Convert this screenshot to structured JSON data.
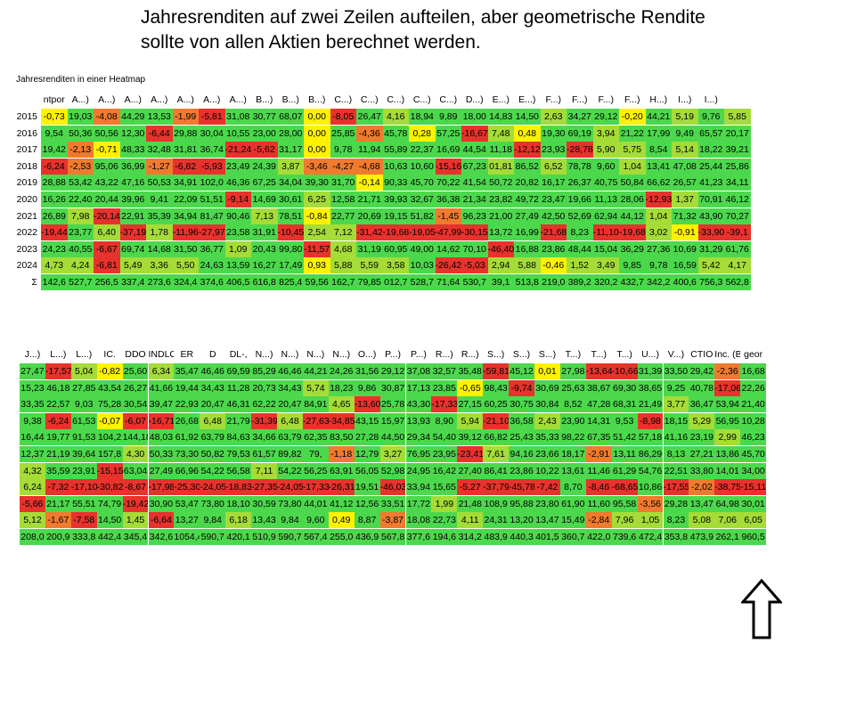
{
  "annotation": {
    "line1": "Jahresrenditen auf zwei Zeilen aufteilen, aber geometrische Rendite",
    "line2": "sollte von allen Aktien berechnet werden."
  },
  "heatmap_title": "Jahresrenditen in einer Heatmap",
  "colors": {
    "red": "#e8322c",
    "orange": "#f07a2e",
    "yellow": "#fff200",
    "yellowgreen": "#a5dc37",
    "green": "#4cd84c"
  },
  "top": {
    "headers": [
      "ntpor",
      "A...)",
      "A...)",
      "A...)",
      "A...)",
      "A...)",
      "A...)",
      "A...)",
      "B...)",
      "B...)",
      "B...)",
      "C...)",
      "C...)",
      "C...)",
      "C...)",
      "C...)",
      "D...)",
      "E...)",
      "E...)",
      "F...)",
      "F...)",
      "F...)",
      "F...)",
      "H...)",
      "I...)",
      "I...)"
    ],
    "years": [
      "2015",
      "2016",
      "2017",
      "2018",
      "2019",
      "2020",
      "2021",
      "2022",
      "2023",
      "2024",
      "Σ"
    ],
    "rows": [
      [
        "-0,73",
        "19,03",
        "-4,08",
        "44,29",
        "13,53",
        "-1,99",
        "-5,81",
        "31,08",
        "30,77",
        "68,07",
        "0,00",
        "-8,05",
        "26,47",
        "4,16",
        "18,94",
        "9,89",
        "18,00",
        "14,83",
        "14,50",
        "2,63",
        "34,27",
        "29,12",
        "-0,20",
        "44,21",
        "5,19",
        "9,76",
        "5,85"
      ],
      [
        "9,54",
        "50,36",
        "50,56",
        "12,30",
        "-6,44",
        "29,88",
        "30,04",
        "10,55",
        "23,00",
        "28,00",
        "0,00",
        "25,85",
        "-4,36",
        "45,78",
        "0,28",
        "57,25",
        "-16,67",
        "7,48",
        "0,48",
        "19,30",
        "69,19",
        "3,94",
        "21,22",
        "17,99",
        "9,49",
        "65,57",
        "20,17"
      ],
      [
        "19,42",
        "-2,13",
        "-0,71",
        "48,33",
        "32,48",
        "31,81",
        "36,74",
        "-21,24",
        "-5,62",
        "31,17",
        "0,00",
        "9,78",
        "11,94",
        "55,89",
        "22,37",
        "16,69",
        "44,54",
        "11,18",
        "-12,12",
        "23,93",
        "-28,78",
        "5,90",
        "5,75",
        "8,54",
        "5,14",
        "18,22",
        "39,21"
      ],
      [
        "-6,24",
        "-2,53",
        "95,06",
        "36,99",
        "-1,27",
        "-6,82",
        "-5,93",
        "23,49",
        "24,39",
        "3,87",
        "-3,46",
        "-4,27",
        "-4,68",
        "10,63",
        "10,60",
        "-15,16",
        "67,23",
        "01,81",
        "86,52",
        "6,52",
        "78,78",
        "9,60",
        "1,04",
        "13,41",
        "47,08",
        "25,44",
        "25,86"
      ],
      [
        "28,88",
        "53,42",
        "43,22",
        "47,16",
        "50,53",
        "34,91",
        "102,0",
        "46,36",
        "67,25",
        "34,04",
        "39,30",
        "31,70",
        "-0,14",
        "90,33",
        "45,70",
        "70,22",
        "41,54",
        "50,72",
        "20,82",
        "16,17",
        "26,37",
        "40,75",
        "50,84",
        "66,62",
        "26,57",
        "41,23",
        "34,11"
      ],
      [
        "16,26",
        "22,40",
        "20,44",
        "39,96",
        "9,41",
        "22,09",
        "51,51",
        "-9,14",
        "14,69",
        "30,61",
        "6,25",
        "12,58",
        "21,71",
        "39,93",
        "32,67",
        "36,38",
        "21,34",
        "23,82",
        "49,72",
        "23,47",
        "19,66",
        "11,13",
        "28,06",
        "-12,93",
        "1,37",
        "70,91",
        "46,12"
      ],
      [
        "26,89",
        "7,98",
        "-20,14",
        "22,91",
        "35,39",
        "34,94",
        "81,47",
        "90,46",
        "7,13",
        "78,51",
        "-0,84",
        "22,77",
        "20,69",
        "19,15",
        "51,82",
        "-1,45",
        "96,23",
        "21,00",
        "27,49",
        "42,50",
        "52,69",
        "62,94",
        "44,12",
        "1,04",
        "71,32",
        "43,90",
        "70,27"
      ],
      [
        "-19,44",
        "23,77",
        "6,40",
        "-37,19",
        "1,78",
        "-11,96",
        "-27,97",
        "23,58",
        "31,91",
        "-10,45",
        "2,54",
        "7,12",
        "-31,42",
        "-19,68",
        "-19,05",
        "-47,99",
        "-30,15",
        "13,72",
        "16,99",
        "-21,68",
        "8,23",
        "-11,10",
        "-19,68",
        "3,02",
        "-0,91",
        "-33,90",
        "-39,1"
      ],
      [
        "24,23",
        "40,55",
        "-6,67",
        "69,74",
        "14,68",
        "31,50",
        "36,77",
        "1,09",
        "20,43",
        "99,80",
        "-11,57",
        "4,68",
        "31,19",
        "60,95",
        "49,00",
        "14,62",
        "70,10",
        "-46,40",
        "16,88",
        "23,86",
        "48,44",
        "15,04",
        "36,29",
        "27,36",
        "10,69",
        "31,29",
        "61,76"
      ],
      [
        "4,73",
        "4,24",
        "-6,81",
        "5,49",
        "3,36",
        "5,50",
        "24,63",
        "13,59",
        "16,27",
        "17,49",
        "0,93",
        "5,88",
        "5,59",
        "3,58",
        "10,03",
        "-26,42",
        "-5,03",
        "2,94",
        "5,88",
        "-0,46",
        "1,52",
        "3,49",
        "9,85",
        "9,78",
        "16,59",
        "5,42",
        "4,17"
      ],
      [
        "142,6",
        "527,7",
        "256,5",
        "337,4",
        "273,6",
        "324,4",
        "374,6",
        "406,5",
        "616,8",
        "825,4",
        "59,56",
        "162,7",
        "79,85",
        "012,7",
        "528,7",
        "71,64",
        "530,7",
        "39,1",
        "513,8",
        "219,0",
        "389,2",
        "320,2",
        "432,7",
        "342,2",
        "400,6",
        "756,3",
        "562,8"
      ]
    ]
  },
  "bottom": {
    "headers": [
      "J...)",
      "L...)",
      "L...)",
      "IC.",
      "DDO",
      "INDLOG,0000",
      "ER",
      "D",
      "DL-,",
      "N...)",
      "N...)",
      "N...)",
      "N...)",
      "O...)",
      "P...)",
      "P...)",
      "R...)",
      "R...)",
      "S...)",
      "S...)",
      "S...)",
      "T...)",
      "T...)",
      "T...)",
      "U...)",
      "V...)",
      "CTIO",
      "Inc. (B",
      "geor"
    ],
    "rows": [
      [
        "27,47",
        "-17,57",
        "5,04",
        "-0,82",
        "25,60",
        "6,34",
        "35,47",
        "46,46",
        "69,59",
        "85,29",
        "46,46",
        "44,21",
        "24,26",
        "31,56",
        "29,12",
        "37,08",
        "32,57",
        "35,48",
        "-59,81",
        "45,12",
        "0,01",
        "27,98",
        "-13,64",
        "-10,66",
        "31,39",
        "33,50",
        "29,42",
        "-2,36",
        "16,68"
      ],
      [
        "15,23",
        "46,18",
        "27,85",
        "43,54",
        "26,27",
        "41,66",
        "19,44",
        "34,43",
        "11,28",
        "20,73",
        "34,43",
        "5,74",
        "18,23",
        "9,86",
        "30,87",
        "17,13",
        "23,85",
        "-0,65",
        "98,43",
        "-9,74",
        "30,69",
        "25,63",
        "38,67",
        "69,30",
        "38,65",
        "9,25",
        "40,78",
        "-17,06",
        "22,26"
      ],
      [
        "33,35",
        "22,57",
        "9,03",
        "75,28",
        "30,54",
        "39,47",
        "22,93",
        "20,47",
        "46,31",
        "62,22",
        "20,47",
        "84,91",
        "4,65",
        "-13,60",
        "25,78",
        "43,30",
        "-17,33",
        "27,15",
        "60,25",
        "30,75",
        "30,84",
        "8,52",
        "47,28",
        "68,31",
        "21,49",
        "3,77",
        "36,47",
        "53,94",
        "21,40"
      ],
      [
        "9,38",
        "-6,24",
        "61,53",
        "-0,07",
        "-6,07",
        "-16,71",
        "26,68",
        "6,48",
        "21,79",
        "-31,39",
        "6,48",
        "-27,63",
        "-34,85",
        "43,15",
        "15,97",
        "13,93",
        "8,90",
        "5,94",
        "-21,10",
        "36,58",
        "2,43",
        "23,90",
        "14,31",
        "9,53",
        "-8,98",
        "18,15",
        "5,29",
        "56,95",
        "10,28"
      ],
      [
        "16,44",
        "19,77",
        "91,53",
        "104,2",
        "144,18",
        "48,03",
        "61,92",
        "63,79",
        "84,63",
        "34,66",
        "63,79",
        "62,35",
        "83,50",
        "27,28",
        "44,50",
        "29,34",
        "54,40",
        "39,12",
        "66,82",
        "25,43",
        "35,33",
        "98,22",
        "67,35",
        "51,42",
        "57,18",
        "41,16",
        "23,19",
        "2,99",
        "46,23"
      ],
      [
        "12,37",
        "21,19",
        "39,64",
        "157,8",
        "4,30",
        "50,33",
        "73,30",
        "50,82",
        "79,53",
        "61,57",
        "89,82",
        "79,",
        "-1,18",
        "12,79",
        "3,27",
        "76,95",
        "23,95",
        "-23,41",
        "7,61",
        "94,16",
        "23,66",
        "18,17",
        "-2,91",
        "13,11",
        "86,29",
        "8,13",
        "27,21",
        "13,86",
        "45,70"
      ],
      [
        "4,32",
        "35,59",
        "23,91",
        "-15,15",
        "63,04",
        "27,49",
        "66,96",
        "54,22",
        "56,58",
        "7,11",
        "54,22",
        "56,25",
        "63,91",
        "56,05",
        "52,98",
        "24,95",
        "16,42",
        "27,40",
        "86,41",
        "23,86",
        "10,22",
        "13,61",
        "11,46",
        "61,29",
        "54,76",
        "22,51",
        "33,80",
        "14,01",
        "34,00"
      ],
      [
        "6,24",
        "-7,32",
        "-17,10",
        "-30,82",
        "-8,67",
        "-17,98",
        "-25,30",
        "-24,05",
        "-18,83",
        "-27,35",
        "-24,05",
        "-17,33",
        "-26,31",
        "19,51",
        "-46,03",
        "33,94",
        "15,65",
        "-5,27",
        "-37,79",
        "-45,78",
        "-7,42",
        "8,70",
        "-8,46",
        "-68,65",
        "10,86",
        "-17,55",
        "-2,02",
        "-38,75",
        "-15,11"
      ],
      [
        "-5,66",
        "21,17",
        "55,51",
        "74,79",
        "-19,42",
        "30,90",
        "53,47",
        "73,80",
        "18,10",
        "30,59",
        "73,80",
        "44,01",
        "41,12",
        "12,56",
        "33,51",
        "17,72",
        "1,99",
        "21,48",
        "108,9",
        "95,88",
        "23,80",
        "61,90",
        "11,60",
        "95,58",
        "-3,56",
        "29,28",
        "13,47",
        "64,98",
        "30,01"
      ],
      [
        "5,12",
        "-1,67",
        "-7,58",
        "14,50",
        "1,45",
        "-6,64",
        "13,27",
        "9,84",
        "6,18",
        "13,43",
        "9,84",
        "9,60",
        "0,49",
        "8,87",
        "-3,87",
        "18,08",
        "22,73",
        "4,11",
        "24,31",
        "13,20",
        "13,47",
        "15,49",
        "-2,84",
        "7,96",
        "1,05",
        "8,23",
        "5,08",
        "7,06",
        "6,05"
      ],
      [
        "208,0",
        "200,9",
        "333,8",
        "442,4",
        "345,4",
        "342,6",
        "1054,4",
        "590,7",
        "420,1",
        "510,9",
        "590,7",
        "567,4",
        "255,0",
        "436,9",
        "567,8",
        "377,6",
        "194,6",
        "314,2",
        "483,9",
        "440,3",
        "401,5",
        "360,7",
        "422,0",
        "739,6",
        "472,4",
        "353,8",
        "473,9",
        "262,1",
        "960,5"
      ]
    ]
  }
}
